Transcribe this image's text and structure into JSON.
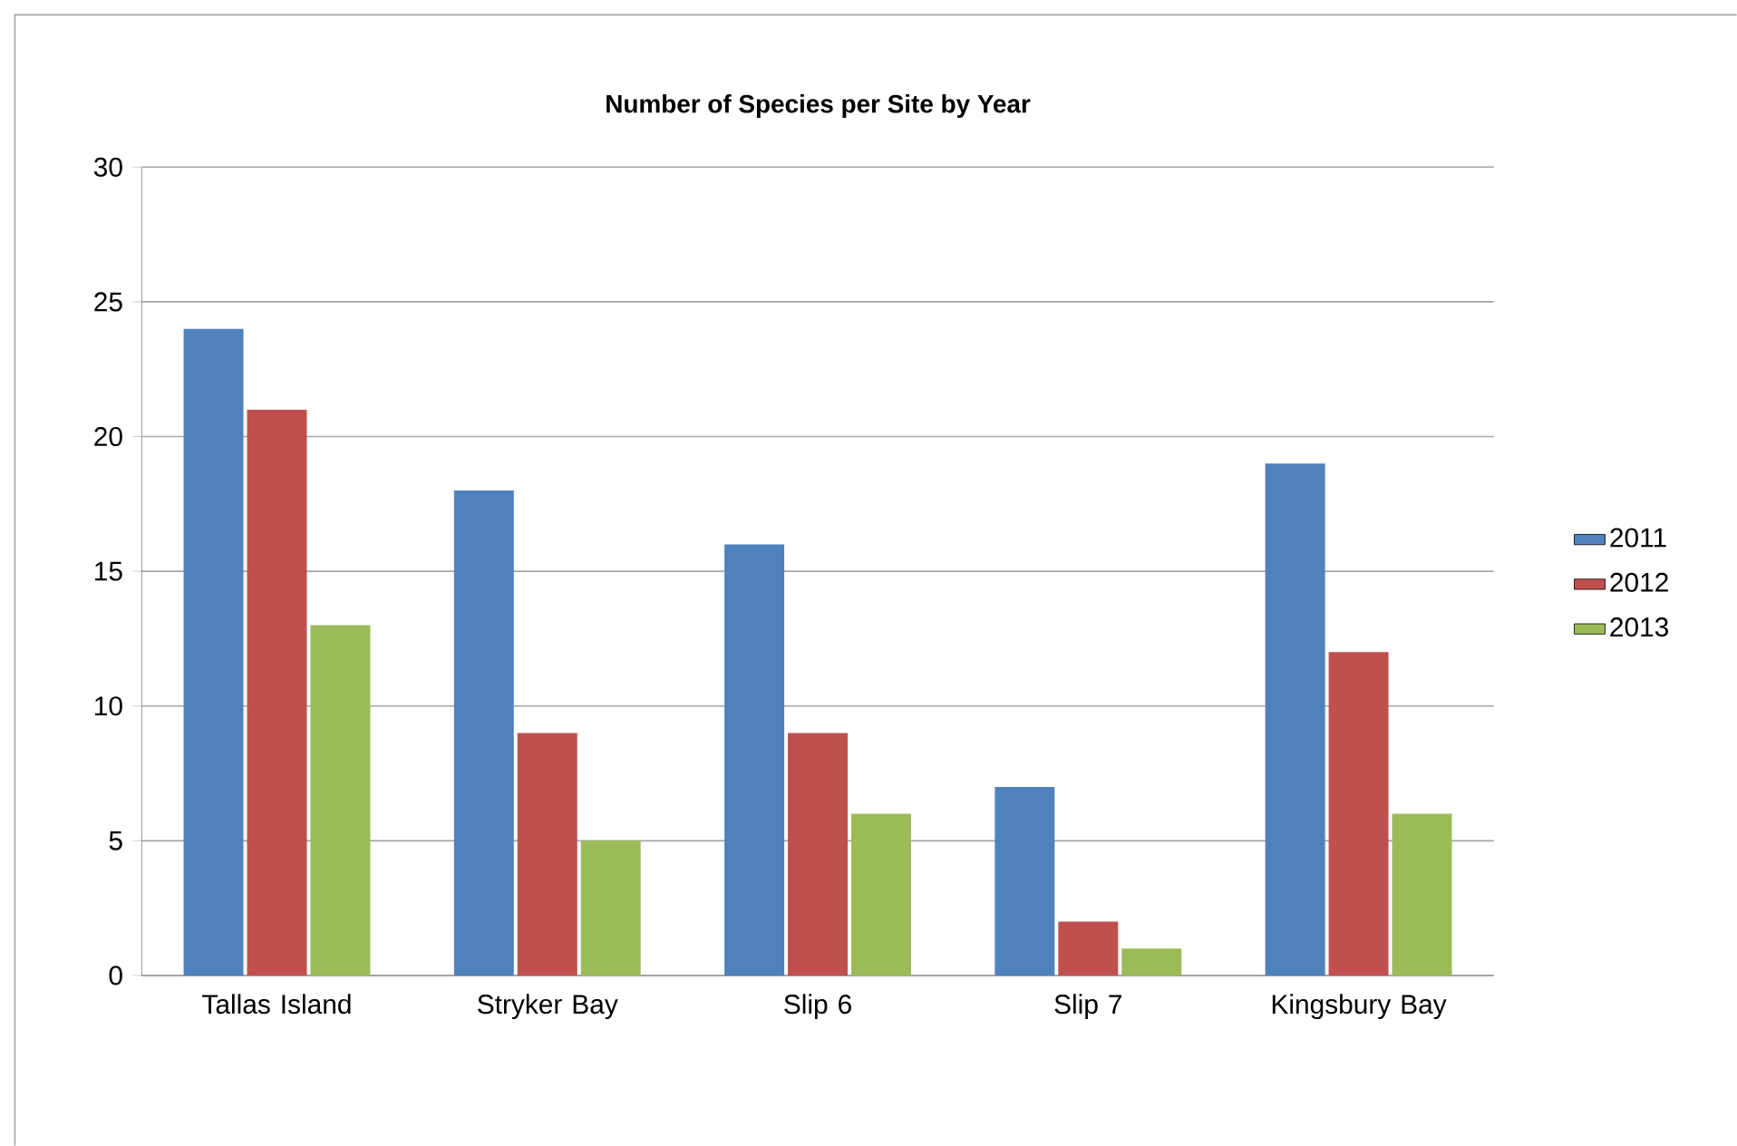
{
  "chart_data": {
    "type": "bar",
    "title": "Number of Species per Site by Year",
    "categories": [
      "Tallas Island",
      "Stryker Bay",
      "Slip 6",
      "Slip 7",
      "Kingsbury Bay"
    ],
    "series": [
      {
        "name": "2011",
        "color": "#4f81bd",
        "values": [
          24,
          18,
          16,
          7,
          19
        ]
      },
      {
        "name": "2012",
        "color": "#c0504d",
        "values": [
          21,
          9,
          9,
          2,
          12
        ]
      },
      {
        "name": "2013",
        "color": "#9bbb59",
        "values": [
          13,
          5,
          6,
          1,
          6
        ]
      }
    ],
    "ylim": [
      0,
      30
    ],
    "yticks": [
      0,
      5,
      10,
      15,
      20,
      25,
      30
    ],
    "grid": "y",
    "legend": "right"
  }
}
